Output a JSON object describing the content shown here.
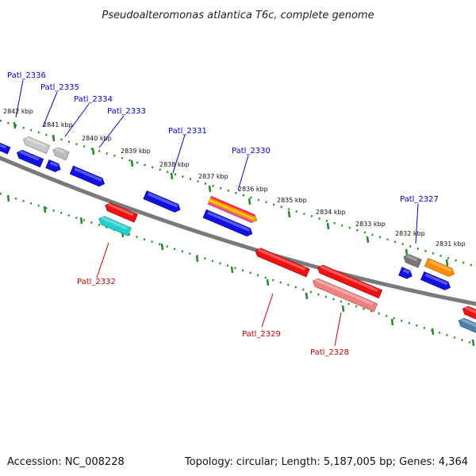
{
  "title": "Pseudoalteromonas atlantica T6c, complete genome",
  "footer": {
    "accession": "Accession: NC_008228",
    "summary": "Topology: circular; Length: 5,187,005 bp; Genes: 4,364"
  },
  "kbp_ticks": [
    "2842 kbp",
    "2841 kbp",
    "2840 kbp",
    "2839 kbp",
    "2838 kbp",
    "2837 kbp",
    "2836 kbp",
    "2835 kbp",
    "2834 kbp",
    "2833 kbp",
    "2832 kbp",
    "2831 kbp"
  ],
  "labels_forward": [
    "Patl_2336",
    "Patl_2335",
    "Patl_2334",
    "Patl_2333",
    "Patl_2331",
    "Patl_2330",
    "Patl_2327"
  ],
  "labels_reverse": [
    "Patl_2332",
    "Patl_2329",
    "Patl_2328"
  ],
  "colors": {
    "label_forward": "#0000cc",
    "label_reverse": "#cc0000",
    "tick_green": "#228b22",
    "backbone": "#7a7a7a"
  },
  "features": [
    {
      "name": "gene-blue-edge-left",
      "color": "#1010e0",
      "strand": "-"
    },
    {
      "name": "gene-blue-2336",
      "color": "#1010e0",
      "strand": "-"
    },
    {
      "name": "gene-gray-2335",
      "color": "#c8c8c8",
      "strand": "-"
    },
    {
      "name": "gene-blue-small",
      "color": "#1010e0",
      "strand": "+"
    },
    {
      "name": "gene-gray-2334",
      "color": "#bcbcbc",
      "strand": "-"
    },
    {
      "name": "gene-blue-2333",
      "color": "#1010e0",
      "strand": "+"
    },
    {
      "name": "gene-blue-2331",
      "color": "#1010e0",
      "strand": "+"
    },
    {
      "name": "gene-multicolor-2330",
      "color": "#e8a020",
      "strand": "+"
    },
    {
      "name": "gene-blue-2330-lower",
      "color": "#1010e0",
      "strand": "+"
    },
    {
      "name": "gene-red-2332",
      "color": "#ee1111",
      "strand": "-"
    },
    {
      "name": "gene-cyan-2332",
      "color": "#20d0d0",
      "strand": "-"
    },
    {
      "name": "gene-red-2329",
      "color": "#ee1111",
      "strand": "-"
    },
    {
      "name": "gene-red-2328",
      "color": "#ee1111",
      "strand": "-"
    },
    {
      "name": "gene-pink-2328",
      "color": "#f08080",
      "strand": "-"
    },
    {
      "name": "gene-darkgray-2327",
      "color": "#777777",
      "strand": "-"
    },
    {
      "name": "gene-orange",
      "color": "#ff8c00",
      "strand": "+"
    },
    {
      "name": "gene-blue-small-right",
      "color": "#1010e0",
      "strand": "+"
    },
    {
      "name": "gene-blue-right",
      "color": "#1010e0",
      "strand": "+"
    },
    {
      "name": "gene-red-right-edge",
      "color": "#ee1111",
      "strand": "-"
    },
    {
      "name": "gene-steelblue-right-edge",
      "color": "#4a7fb0",
      "strand": "-"
    }
  ]
}
